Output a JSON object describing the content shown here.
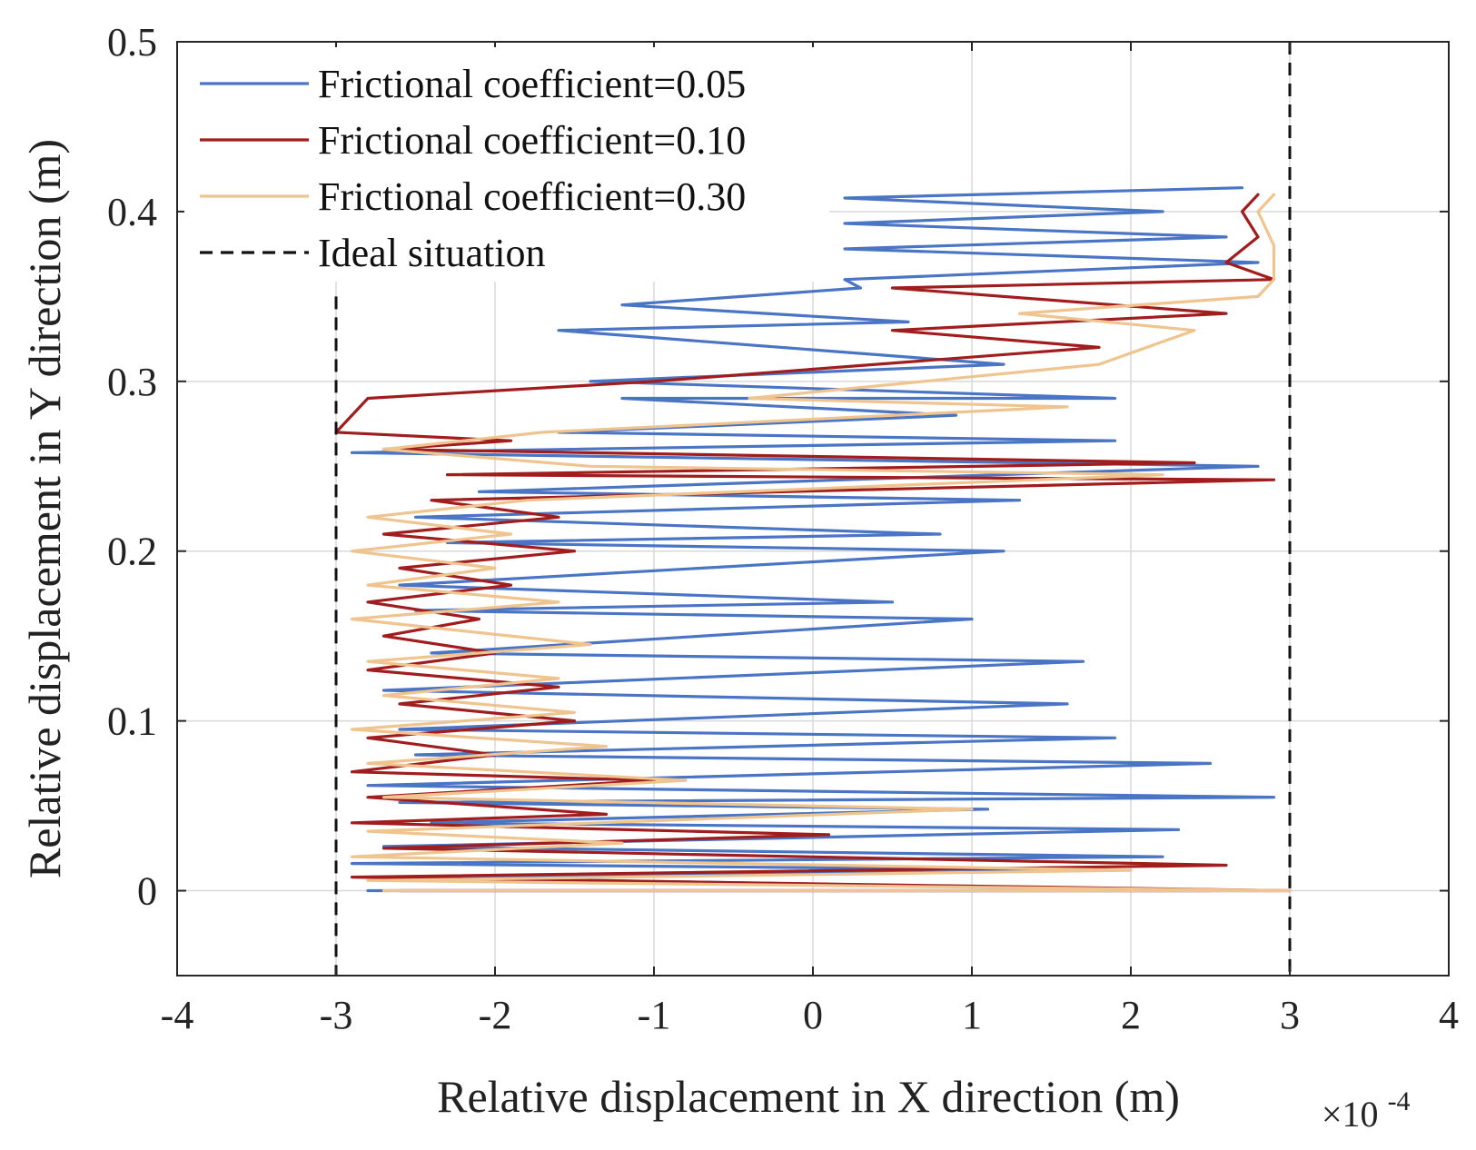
{
  "chart_data": {
    "type": "line",
    "title": "",
    "xlabel": "Relative displacement in X direction (m)",
    "ylabel": "Relative displacement in Y direction (m)",
    "x_exponent_label": "×10",
    "x_exponent_power": "-4",
    "xlim": [
      -4,
      4
    ],
    "ylim": [
      -0.05,
      0.5
    ],
    "x_ticks": [
      -4,
      -3,
      -2,
      -1,
      0,
      1,
      2,
      3,
      4
    ],
    "x_tick_labels": [
      "-4",
      "-3",
      "-2",
      "-1",
      "0",
      "1",
      "2",
      "3",
      "4"
    ],
    "y_ticks": [
      0,
      0.1,
      0.2,
      0.3,
      0.4,
      0.5
    ],
    "y_tick_labels": [
      "0",
      "0.1",
      "0.2",
      "0.3",
      "0.4",
      "0.5"
    ],
    "grid": true,
    "legend_position": "top-left",
    "series": [
      {
        "name": "Frictional coefficient=0.05",
        "color": "#4a74c4",
        "style": "solid",
        "points": [
          [
            -2.8,
            0.0
          ],
          [
            2.5,
            0.0
          ],
          [
            -2.6,
            0.008
          ],
          [
            1.8,
            0.012
          ],
          [
            -2.9,
            0.016
          ],
          [
            2.2,
            0.02
          ],
          [
            -2.7,
            0.026
          ],
          [
            2.3,
            0.036
          ],
          [
            -2.4,
            0.04
          ],
          [
            1.1,
            0.048
          ],
          [
            -2.6,
            0.052
          ],
          [
            2.9,
            0.055
          ],
          [
            -2.8,
            0.062
          ],
          [
            2.5,
            0.075
          ],
          [
            -2.5,
            0.08
          ],
          [
            1.9,
            0.09
          ],
          [
            -2.6,
            0.095
          ],
          [
            1.6,
            0.11
          ],
          [
            -2.7,
            0.118
          ],
          [
            1.7,
            0.135
          ],
          [
            -2.4,
            0.14
          ],
          [
            1.0,
            0.16
          ],
          [
            -2.5,
            0.165
          ],
          [
            0.5,
            0.17
          ],
          [
            -2.6,
            0.18
          ],
          [
            1.2,
            0.2
          ],
          [
            -2.3,
            0.205
          ],
          [
            0.8,
            0.21
          ],
          [
            -2.5,
            0.22
          ],
          [
            1.3,
            0.23
          ],
          [
            -2.1,
            0.235
          ],
          [
            2.8,
            0.25
          ],
          [
            -2.9,
            0.258
          ],
          [
            1.9,
            0.265
          ],
          [
            -1.6,
            0.27
          ],
          [
            0.9,
            0.28
          ],
          [
            -1.2,
            0.29
          ],
          [
            1.9,
            0.29
          ],
          [
            -1.4,
            0.3
          ],
          [
            1.2,
            0.31
          ],
          [
            -1.6,
            0.33
          ],
          [
            0.6,
            0.335
          ],
          [
            -1.2,
            0.345
          ],
          [
            0.3,
            0.355
          ],
          [
            0.2,
            0.36
          ],
          [
            2.8,
            0.37
          ],
          [
            0.2,
            0.378
          ],
          [
            2.6,
            0.385
          ],
          [
            0.2,
            0.393
          ],
          [
            2.2,
            0.4
          ],
          [
            0.2,
            0.408
          ],
          [
            2.7,
            0.414
          ]
        ]
      },
      {
        "name": "Frictional coefficient=0.10",
        "color": "#a11d1d",
        "style": "solid",
        "points": [
          [
            -2.6,
            0.0
          ],
          [
            3.0,
            0.0
          ],
          [
            -2.9,
            0.008
          ],
          [
            2.6,
            0.015
          ],
          [
            -2.7,
            0.025
          ],
          [
            0.1,
            0.033
          ],
          [
            -2.9,
            0.04
          ],
          [
            -1.3,
            0.045
          ],
          [
            -2.8,
            0.055
          ],
          [
            -1.0,
            0.065
          ],
          [
            -2.9,
            0.07
          ],
          [
            -2.0,
            0.08
          ],
          [
            -2.8,
            0.09
          ],
          [
            -1.5,
            0.1
          ],
          [
            -2.6,
            0.11
          ],
          [
            -1.6,
            0.12
          ],
          [
            -2.8,
            0.13
          ],
          [
            -2.0,
            0.14
          ],
          [
            -2.7,
            0.15
          ],
          [
            -2.1,
            0.16
          ],
          [
            -2.8,
            0.17
          ],
          [
            -1.9,
            0.18
          ],
          [
            -2.6,
            0.19
          ],
          [
            -1.5,
            0.2
          ],
          [
            -2.7,
            0.21
          ],
          [
            -1.6,
            0.22
          ],
          [
            -2.4,
            0.23
          ],
          [
            2.9,
            0.242
          ],
          [
            -2.3,
            0.245
          ],
          [
            2.4,
            0.252
          ],
          [
            -2.7,
            0.26
          ],
          [
            -1.9,
            0.265
          ],
          [
            -3.0,
            0.27
          ],
          [
            -2.8,
            0.29
          ],
          [
            -1.0,
            0.3
          ],
          [
            1.8,
            0.32
          ],
          [
            0.5,
            0.33
          ],
          [
            2.6,
            0.34
          ],
          [
            0.5,
            0.355
          ],
          [
            2.9,
            0.36
          ],
          [
            2.6,
            0.37
          ],
          [
            2.8,
            0.385
          ],
          [
            2.7,
            0.4
          ],
          [
            2.8,
            0.41
          ]
        ]
      },
      {
        "name": "Frictional coefficient=0.30",
        "color": "#f0c48e",
        "style": "solid",
        "points": [
          [
            -2.7,
            0.0
          ],
          [
            3.0,
            0.0
          ],
          [
            -2.8,
            0.006
          ],
          [
            2.0,
            0.012
          ],
          [
            -2.9,
            0.02
          ],
          [
            -1.2,
            0.028
          ],
          [
            -2.8,
            0.035
          ],
          [
            1.0,
            0.048
          ],
          [
            -2.7,
            0.055
          ],
          [
            -0.8,
            0.065
          ],
          [
            -2.8,
            0.075
          ],
          [
            -1.3,
            0.085
          ],
          [
            -2.9,
            0.095
          ],
          [
            -1.5,
            0.105
          ],
          [
            -2.7,
            0.115
          ],
          [
            -1.6,
            0.125
          ],
          [
            -2.8,
            0.135
          ],
          [
            -1.4,
            0.145
          ],
          [
            -2.9,
            0.16
          ],
          [
            -1.6,
            0.17
          ],
          [
            -2.8,
            0.18
          ],
          [
            -2.0,
            0.19
          ],
          [
            -2.9,
            0.2
          ],
          [
            -1.9,
            0.21
          ],
          [
            -2.8,
            0.22
          ],
          [
            -1.8,
            0.23
          ],
          [
            2.2,
            0.245
          ],
          [
            -1.4,
            0.25
          ],
          [
            -2.7,
            0.26
          ],
          [
            -1.7,
            0.27
          ],
          [
            1.6,
            0.285
          ],
          [
            -0.4,
            0.29
          ],
          [
            1.8,
            0.31
          ],
          [
            2.4,
            0.33
          ],
          [
            1.3,
            0.34
          ],
          [
            2.8,
            0.35
          ],
          [
            2.9,
            0.36
          ],
          [
            2.9,
            0.38
          ],
          [
            2.8,
            0.4
          ],
          [
            2.9,
            0.41
          ]
        ]
      },
      {
        "name": "Ideal situation",
        "color": "#111111",
        "style": "dashed",
        "segments": [
          [
            [
              -3,
              0.35
            ],
            [
              -3,
              -0.05
            ]
          ],
          [
            [
              3,
              0.415
            ],
            [
              3,
              -0.05
            ]
          ],
          [
            [
              3,
              0.5
            ],
            [
              3,
              0.415
            ]
          ]
        ]
      }
    ]
  }
}
